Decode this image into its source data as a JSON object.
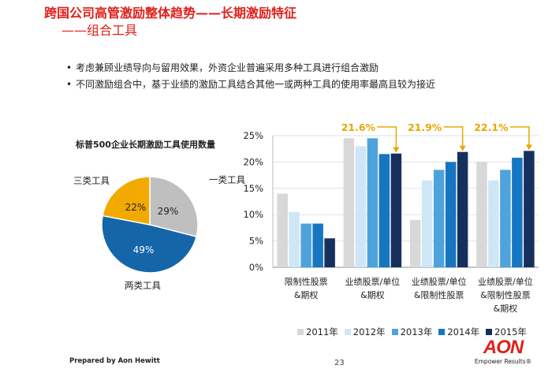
{
  "slide": {
    "title": "跨国公司高管激励整体趋势——长期激励特征",
    "subtitle": "——组合工具",
    "bullets": [
      "考虑兼顾业绩导向与留用效果，外资企业普遍采用多种工具进行组合激励",
      "不同激励组合中，基于业绩的激励工具结合其他一或两种工具的使用率最高且较为接近"
    ],
    "footer": "Prepared by Aon Hewitt",
    "page_number": "23",
    "logo": {
      "mark": "AON",
      "tagline": "Empower Results®"
    }
  },
  "colors": {
    "accent_red": "#e0201b",
    "arrow_orange": "#e8a800",
    "y2011": "#d8d8d8",
    "y2012": "#cfe6f7",
    "y2013": "#4fa3dc",
    "y2014": "#1676c2",
    "y2015": "#16305e",
    "pie_gray": "#bfbfbf",
    "pie_blue": "#1466a8",
    "pie_orange": "#f2a900"
  },
  "chart_data": [
    {
      "type": "pie",
      "title": "标普500企业长期激励工具使用数量",
      "slices": [
        {
          "label": "一类工具",
          "value": 29,
          "value_label": "29%"
        },
        {
          "label": "两类工具",
          "value": 49,
          "value_label": "49%"
        },
        {
          "label": "三类工具",
          "value": 22,
          "value_label": "22%"
        }
      ]
    },
    {
      "type": "bar",
      "ylim": [
        0,
        25
      ],
      "yticks": [
        "0%",
        "5%",
        "10%",
        "15%",
        "20%",
        "25%"
      ],
      "categories": [
        [
          "限制性股票",
          "&期权"
        ],
        [
          "业绩股票/单位",
          "&期权"
        ],
        [
          "业绩股票/单位",
          "&限制性股票"
        ],
        [
          "业绩股票/单位",
          "&限制性股票",
          "&期权"
        ]
      ],
      "series": [
        {
          "name": "2011年",
          "values": [
            14,
            24.5,
            9,
            20
          ]
        },
        {
          "name": "2012年",
          "values": [
            10.5,
            23,
            16.5,
            16.5
          ]
        },
        {
          "name": "2013年",
          "values": [
            8.3,
            24.5,
            18.5,
            18.5
          ]
        },
        {
          "name": "2014年",
          "values": [
            8.3,
            21.5,
            20,
            20.8
          ]
        },
        {
          "name": "2015年",
          "values": [
            5.5,
            21.6,
            21.9,
            22.1
          ]
        }
      ],
      "annotations": [
        "21.6%",
        "21.9%",
        "22.1%"
      ]
    }
  ]
}
